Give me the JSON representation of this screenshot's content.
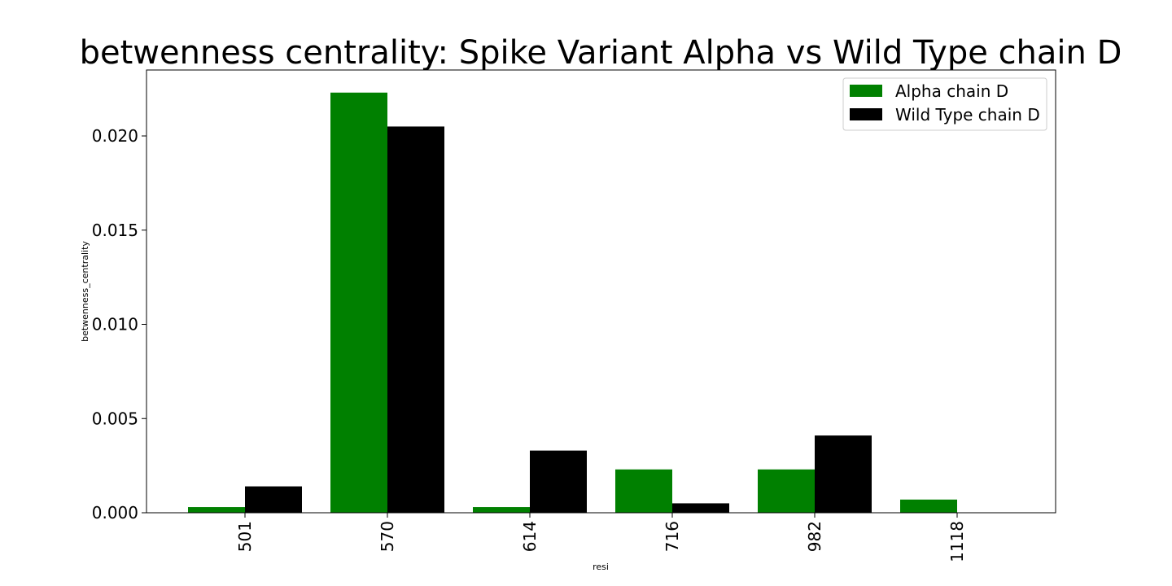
{
  "chart_data": {
    "type": "bar",
    "title": "betwenness centrality: Spike Variant Alpha vs Wild Type chain D",
    "xlabel": "resi",
    "ylabel": "betwenness_centrality",
    "categories": [
      "501",
      "570",
      "614",
      "716",
      "982",
      "1118"
    ],
    "series": [
      {
        "name": "Alpha chain D",
        "color": "#008000",
        "values": [
          0.0003,
          0.0223,
          0.0003,
          0.0023,
          0.0023,
          0.0007
        ]
      },
      {
        "name": "Wild Type chain D",
        "color": "#000000",
        "values": [
          0.0014,
          0.0205,
          0.0033,
          0.0005,
          0.0041,
          0.0
        ]
      }
    ],
    "ylim": [
      0,
      0.0235
    ],
    "yticks": [
      0.0,
      0.005,
      0.01,
      0.015,
      0.02
    ],
    "ytick_labels": [
      "0.000",
      "0.005",
      "0.010",
      "0.015",
      "0.020"
    ],
    "grid": false,
    "legend_position": "top-right",
    "xtick_rotation": "vertical"
  }
}
